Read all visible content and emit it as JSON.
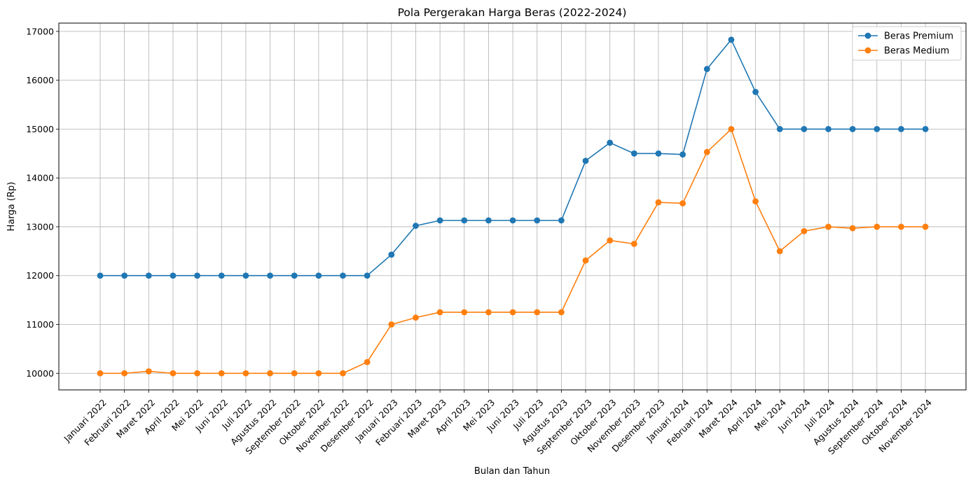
{
  "chart_data": {
    "type": "line",
    "title": "Pola Pergerakan Harga Beras (2022-2024)",
    "xlabel": "Bulan dan Tahun",
    "ylabel": "Harga (Rp)",
    "ylim": [
      9660,
      17170
    ],
    "yticks": [
      10000,
      11000,
      12000,
      13000,
      14000,
      15000,
      16000,
      17000
    ],
    "grid": true,
    "legend_position": "top-right",
    "categories": [
      "Januari 2022",
      "Februari 2022",
      "Maret 2022",
      "April 2022",
      "Mei 2022",
      "Juni 2022",
      "Juli 2022",
      "Agustus 2022",
      "September 2022",
      "Oktober 2022",
      "November 2022",
      "Desember 2022",
      "Januari 2023",
      "Februari 2023",
      "Maret 2023",
      "April 2023",
      "Mei 2023",
      "Juni 2023",
      "Juli 2023",
      "Agustus 2023",
      "September 2023",
      "Oktober 2023",
      "November 2023",
      "Desember 2023",
      "Januari 2024",
      "Februari 2024",
      "Maret 2024",
      "April 2024",
      "Mei 2024",
      "Juni 2024",
      "Juli 2024",
      "Agustus 2024",
      "September 2024",
      "Oktober 2024",
      "November 2024"
    ],
    "series": [
      {
        "name": "Beras Premium",
        "color": "#1f77b4",
        "values": [
          12000,
          12000,
          12000,
          12000,
          12000,
          12000,
          12000,
          12000,
          12000,
          12000,
          12000,
          12000,
          12430,
          13020,
          13130,
          13130,
          13130,
          13130,
          13130,
          13130,
          14350,
          14720,
          14500,
          14500,
          14480,
          16230,
          16830,
          15760,
          15000,
          15000,
          15000,
          15000,
          15000,
          15000,
          15000
        ]
      },
      {
        "name": "Beras Medium",
        "color": "#ff7f0e",
        "values": [
          10000,
          10000,
          10040,
          10000,
          10000,
          10000,
          10000,
          10000,
          10000,
          10000,
          10000,
          10230,
          11000,
          11140,
          11250,
          11250,
          11250,
          11250,
          11250,
          11250,
          12310,
          12720,
          12650,
          13500,
          13480,
          14530,
          15000,
          13520,
          12500,
          12910,
          13000,
          12970,
          13000,
          13000,
          13000
        ]
      }
    ]
  }
}
